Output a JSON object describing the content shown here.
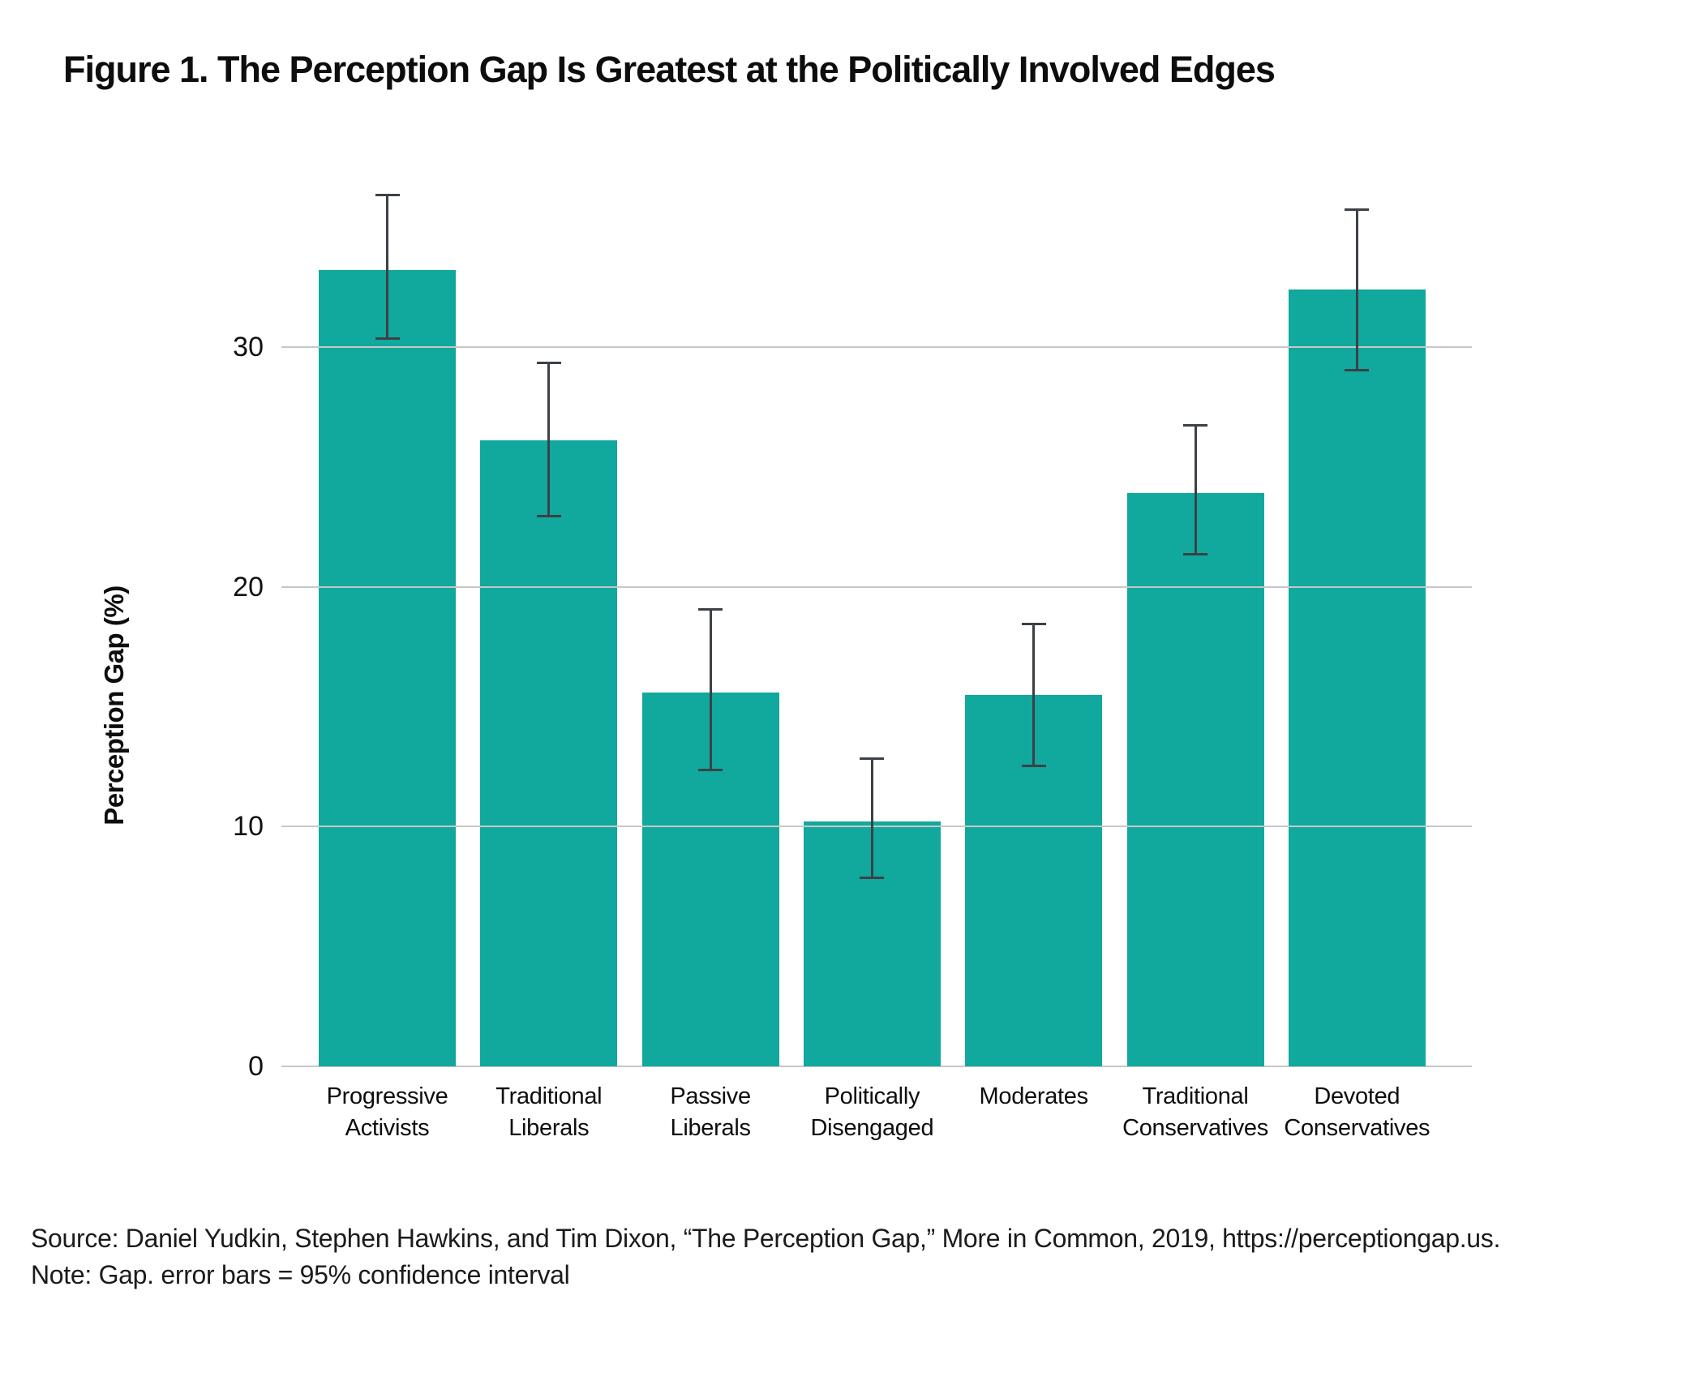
{
  "figure": {
    "title": "Figure 1. The Perception Gap Is Greatest at the Politically Involved Edges",
    "source_line": "Source: Daniel Yudkin, Stephen Hawkins, and Tim Dixon, “The Perception Gap,” More in Common, 2019, https://perceptiongap.us.",
    "note_line": "Note: Gap. error bars = 95% confidence interval"
  },
  "chart_data": {
    "type": "bar",
    "title": "Figure 1. The Perception Gap Is Greatest at the Politically Involved Edges",
    "xlabel": "",
    "ylabel": "Perception Gap (%)",
    "ylim": [
      0,
      36.7
    ],
    "yticks": [
      0,
      10,
      20,
      30
    ],
    "grid": true,
    "legend": "none",
    "bar_color": "#11a89d",
    "error_bar_color": "#3c4147",
    "gridline_color": "#c7c7c7",
    "categories": [
      "Progressive Activists",
      "Traditional Liberals",
      "Passive Liberals",
      "Politically Disengaged",
      "Moderates",
      "Traditional Conservatives",
      "Devoted Conservatives"
    ],
    "category_lines": [
      [
        "Progressive",
        "Activists"
      ],
      [
        "Traditional",
        "Liberals"
      ],
      [
        "Passive",
        "Liberals"
      ],
      [
        "Politically",
        "Disengaged"
      ],
      [
        "Moderates"
      ],
      [
        "Traditional",
        "Conservatives"
      ],
      [
        "Devoted",
        "Conservatives"
      ]
    ],
    "series": [
      {
        "name": "Perception Gap (%)",
        "values": [
          33.2,
          26.1,
          15.6,
          10.2,
          15.5,
          23.9,
          32.4
        ],
        "ci_low": [
          30.4,
          23.0,
          12.4,
          7.9,
          12.6,
          21.4,
          29.1
        ],
        "ci_high": [
          36.3,
          29.3,
          19.0,
          12.8,
          18.4,
          26.7,
          35.7
        ]
      }
    ]
  }
}
